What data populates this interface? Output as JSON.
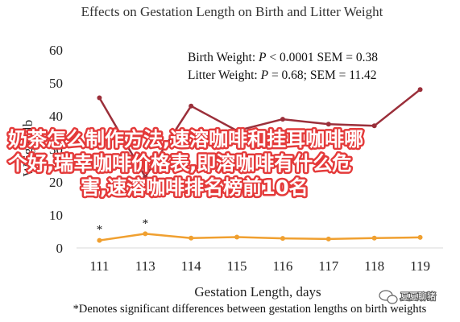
{
  "chart_data": {
    "type": "line",
    "title": "Effects on Gestation Length on Birth and Litter Weight",
    "xlabel": "Gestation Length, days",
    "ylabel": "Weight, lb",
    "categories": [
      "111",
      "113",
      "114",
      "115",
      "116",
      "117",
      "118",
      "119"
    ],
    "ylim": [
      0,
      60
    ],
    "yticks": [
      "0",
      "10",
      "20",
      "30",
      "40",
      "50",
      "60"
    ],
    "grid": false,
    "legend_position": "top-right",
    "series": [
      {
        "name": "Litter Weight",
        "color": "#9b2f3a",
        "values": [
          45.5,
          21.5,
          43,
          35.5,
          39,
          37.5,
          37,
          48
        ]
      },
      {
        "name": "Birth Weight",
        "color": "#f0a030",
        "values": [
          2.3,
          4.3,
          3.0,
          3.3,
          2.9,
          2.7,
          3.0,
          3.2
        ]
      }
    ],
    "legend_lines": [
      {
        "prefix": "Birth Weight: ",
        "italic": "P",
        "suffix": " < 0.0001 SEM = 0.38"
      },
      {
        "prefix": "Litter Weight: ",
        "italic": "P",
        "suffix": " = 0.68; SEM = 11.42"
      }
    ],
    "annotations": [
      {
        "text": "*",
        "category": "111",
        "value": 5.7
      },
      {
        "text": "*",
        "category": "113",
        "value": 7.6
      }
    ],
    "footnote": "*Denotes significant differences between gestation lengths on birth weights"
  },
  "overlay": {
    "lines": [
      "奶茶怎么制作方法,速溶咖啡和挂耳咖啡哪",
      "个好,瑞幸咖啡价格表,即溶咖啡有什么危",
      "害,速溶咖啡排名榜前10名"
    ]
  },
  "watermark": {
    "text": "夏夏聊猪",
    "icon": "chat-bubble-icon"
  }
}
